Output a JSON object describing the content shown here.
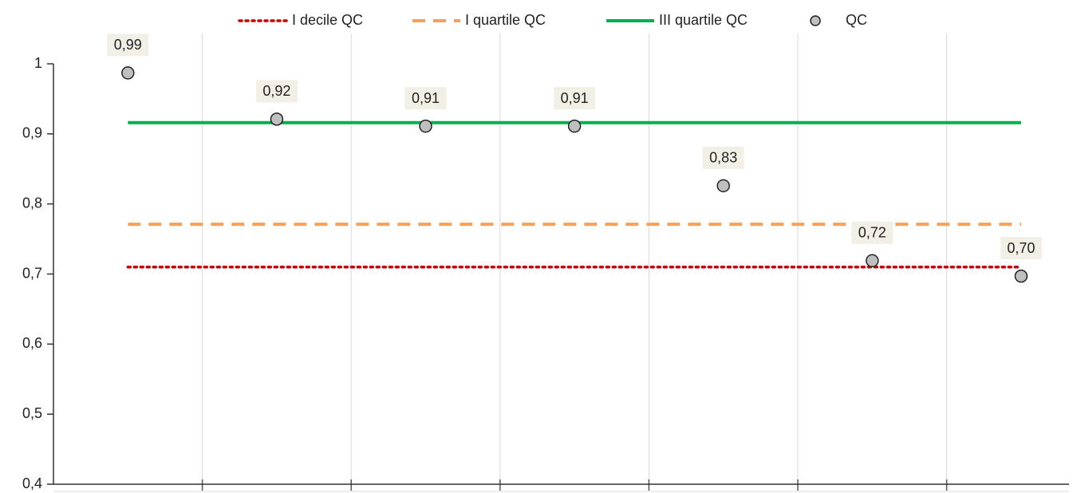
{
  "chart_data": {
    "type": "scatter-lines",
    "categories": [
      null,
      null,
      null,
      null,
      null,
      null,
      null
    ],
    "series": [
      {
        "name": "I decile QC",
        "color": "#c00000",
        "style": "dotted",
        "values": [
          0.71,
          0.71,
          0.71,
          0.71,
          0.71,
          0.71,
          0.71
        ]
      },
      {
        "name": "I quartile QC",
        "color": "#f4a15d",
        "style": "dashed",
        "values": [
          0.771,
          0.771,
          0.771,
          0.771,
          0.771,
          0.771,
          0.771
        ]
      },
      {
        "name": "III quartile QC",
        "color": "#00b050",
        "style": "solid",
        "values": [
          0.916,
          0.916,
          0.916,
          0.916,
          0.916,
          0.916,
          0.916
        ]
      },
      {
        "name": "QC",
        "color": "#bfbfbf",
        "style": "marker",
        "values": [
          0.987,
          0.921,
          0.911,
          0.911,
          0.826,
          0.719,
          0.697
        ],
        "value_labels": [
          "0,99",
          "0,92",
          "0,91",
          "0,91",
          "0,83",
          "0,72",
          "0,70"
        ]
      }
    ],
    "ylim": [
      0.4,
      1
    ],
    "yticks": [
      {
        "value": 0.4,
        "label": "0,4"
      },
      {
        "value": 0.5,
        "label": "0,5"
      },
      {
        "value": 0.6,
        "label": "0,6"
      },
      {
        "value": 0.7,
        "label": "0,7"
      },
      {
        "value": 0.8,
        "label": "0,8"
      },
      {
        "value": 0.9,
        "label": "0,9"
      },
      1
    ],
    "legend": "top",
    "grid": "vertical"
  }
}
